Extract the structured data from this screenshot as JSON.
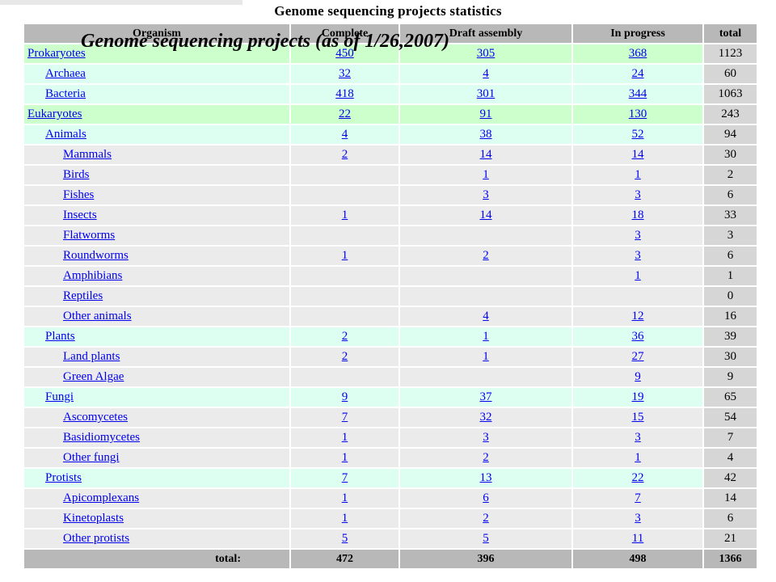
{
  "page_title": "Genome sequencing projects statistics",
  "overlay_title": "Genome sequencing projects (as of 1/26,2007)",
  "headers": [
    "Organism",
    "Complete",
    "Draft assembly",
    "In progress",
    "total"
  ],
  "rows": [
    {
      "name": "Prokaryotes",
      "level": 0,
      "complete": "450",
      "draft": "305",
      "progress": "368",
      "total": "1123"
    },
    {
      "name": "Archaea",
      "level": 1,
      "complete": "32",
      "draft": "4",
      "progress": "24",
      "total": "60"
    },
    {
      "name": "Bacteria",
      "level": 1,
      "complete": "418",
      "draft": "301",
      "progress": "344",
      "total": "1063"
    },
    {
      "name": "Eukaryotes",
      "level": 0,
      "complete": "22",
      "draft": "91",
      "progress": "130",
      "total": "243"
    },
    {
      "name": "Animals",
      "level": 1,
      "complete": "4",
      "draft": "38",
      "progress": "52",
      "total": "94"
    },
    {
      "name": "Mammals",
      "level": 2,
      "complete": "2",
      "draft": "14",
      "progress": "14",
      "total": "30"
    },
    {
      "name": "Birds",
      "level": 2,
      "complete": "",
      "draft": "1",
      "progress": "1",
      "total": "2"
    },
    {
      "name": "Fishes",
      "level": 2,
      "complete": "",
      "draft": "3",
      "progress": "3",
      "total": "6"
    },
    {
      "name": "Insects",
      "level": 2,
      "complete": "1",
      "draft": "14",
      "progress": "18",
      "total": "33"
    },
    {
      "name": "Flatworms",
      "level": 2,
      "complete": "",
      "draft": "",
      "progress": "3",
      "total": "3"
    },
    {
      "name": "Roundworms",
      "level": 2,
      "complete": "1",
      "draft": "2",
      "progress": "3",
      "total": "6"
    },
    {
      "name": "Amphibians",
      "level": 2,
      "complete": "",
      "draft": "",
      "progress": "1",
      "total": "1"
    },
    {
      "name": "Reptiles",
      "level": 2,
      "complete": "",
      "draft": "",
      "progress": "",
      "total": "0"
    },
    {
      "name": "Other animals",
      "level": 2,
      "complete": "",
      "draft": "4",
      "progress": "12",
      "total": "16"
    },
    {
      "name": "Plants",
      "level": 1,
      "complete": "2",
      "draft": "1",
      "progress": "36",
      "total": "39"
    },
    {
      "name": "Land plants",
      "level": 2,
      "complete": "2",
      "draft": "1",
      "progress": "27",
      "total": "30"
    },
    {
      "name": "Green Algae",
      "level": 2,
      "complete": "",
      "draft": "",
      "progress": "9",
      "total": "9"
    },
    {
      "name": "Fungi",
      "level": 1,
      "complete": "9",
      "draft": "37",
      "progress": "19",
      "total": "65"
    },
    {
      "name": "Ascomycetes",
      "level": 2,
      "complete": "7",
      "draft": "32",
      "progress": "15",
      "total": "54"
    },
    {
      "name": "Basidiomycetes",
      "level": 2,
      "complete": "1",
      "draft": "3",
      "progress": "3",
      "total": "7"
    },
    {
      "name": "Other fungi",
      "level": 2,
      "complete": "1",
      "draft": "2",
      "progress": "1",
      "total": "4"
    },
    {
      "name": "Protists",
      "level": 1,
      "complete": "7",
      "draft": "13",
      "progress": "22",
      "total": "42"
    },
    {
      "name": "Apicomplexans",
      "level": 2,
      "complete": "1",
      "draft": "6",
      "progress": "7",
      "total": "14"
    },
    {
      "name": "Kinetoplasts",
      "level": 2,
      "complete": "1",
      "draft": "2",
      "progress": "3",
      "total": "6"
    },
    {
      "name": "Other protists",
      "level": 2,
      "complete": "5",
      "draft": "5",
      "progress": "11",
      "total": "21"
    }
  ],
  "totals": {
    "label": "total:",
    "complete": "472",
    "draft": "396",
    "progress": "498",
    "total": "1366"
  }
}
